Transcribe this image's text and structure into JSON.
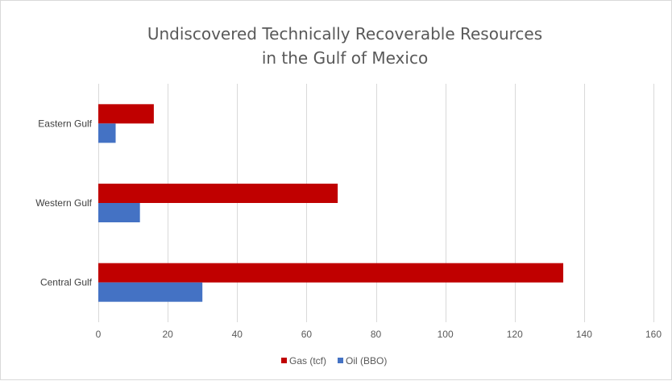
{
  "chart_data": {
    "type": "bar",
    "orientation": "horizontal",
    "title_lines": [
      "Undiscovered Technically Recoverable Resources",
      "in the Gulf of Mexico"
    ],
    "categories": [
      "Eastern Gulf",
      "Western Gulf",
      "Central Gulf"
    ],
    "series": [
      {
        "name": "Gas (tcf)",
        "color": "#c00000",
        "values": [
          16,
          69,
          134
        ]
      },
      {
        "name": "Oil (BBO)",
        "color": "#4472c4",
        "values": [
          5,
          12,
          30
        ]
      }
    ],
    "xlim": [
      0,
      160
    ],
    "x_ticks": [
      0,
      20,
      40,
      60,
      80,
      100,
      120,
      140,
      160
    ],
    "grid": true,
    "legend_position": "bottom"
  }
}
